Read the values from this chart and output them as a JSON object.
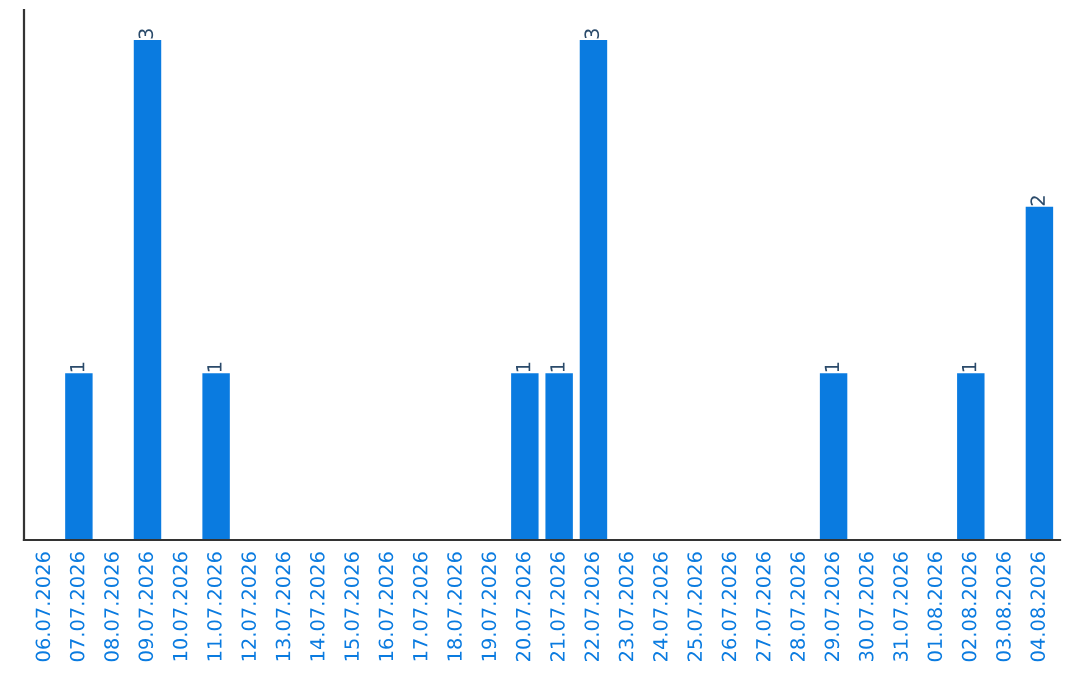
{
  "chart_data": {
    "type": "bar",
    "categories": [
      "06.07.2026",
      "07.07.2026",
      "08.07.2026",
      "09.07.2026",
      "10.07.2026",
      "11.07.2026",
      "12.07.2026",
      "13.07.2026",
      "14.07.2026",
      "15.07.2026",
      "16.07.2026",
      "17.07.2026",
      "18.07.2026",
      "19.07.2026",
      "20.07.2026",
      "21.07.2026",
      "22.07.2026",
      "23.07.2026",
      "24.07.2026",
      "25.07.2026",
      "26.07.2026",
      "27.07.2026",
      "28.07.2026",
      "29.07.2026",
      "30.07.2026",
      "31.07.2026",
      "01.08.2026",
      "02.08.2026",
      "03.08.2026",
      "04.08.2026"
    ],
    "values": [
      0,
      1,
      0,
      3,
      0,
      1,
      0,
      0,
      0,
      0,
      0,
      0,
      0,
      0,
      1,
      1,
      3,
      0,
      0,
      0,
      0,
      0,
      0,
      1,
      0,
      0,
      0,
      1,
      0,
      2
    ],
    "value_labels": [
      null,
      "1",
      null,
      "3",
      null,
      "1",
      null,
      null,
      null,
      null,
      null,
      null,
      null,
      null,
      "1",
      "1",
      "3",
      null,
      null,
      null,
      null,
      null,
      null,
      "1",
      null,
      null,
      null,
      "1",
      null,
      "2"
    ],
    "color": "#0a7be0",
    "tick_labels": "x",
    "grid": false
  }
}
